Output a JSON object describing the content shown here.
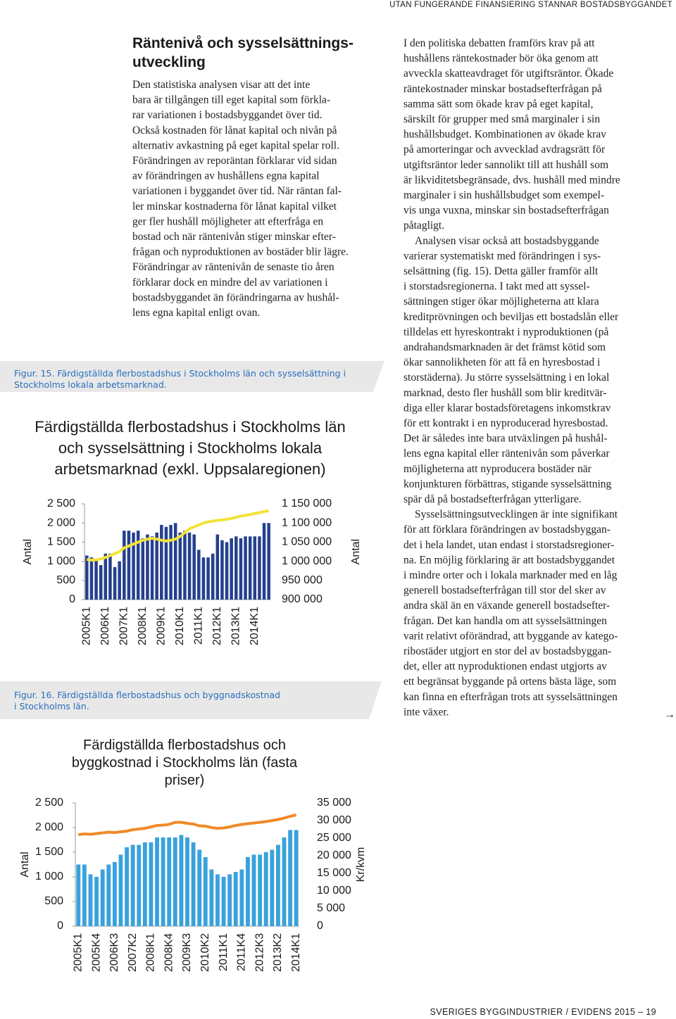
{
  "header": "UTAN FUNGERANDE FINANSIERING STANNAR BOSTADSBYGGANDET",
  "left_column": {
    "heading": [
      "Räntenivå och sysselsättnings-",
      "utveckling"
    ],
    "lines": [
      "Den statistiska analysen visar att det inte",
      "bara är tillgången till eget kapital som förkla-",
      "rar variationen i bostadsbyggandet över tid.",
      "Också kostnaden för lånat kapital och nivån på",
      "alternativ avkastning på eget kapital spelar roll.",
      "Förändringen av reporäntan förklarar vid sidan",
      "av förändringen av hushållens egna kapital",
      "variationen i byggandet över tid. När räntan fal-",
      "ler minskar kostnaderna för lånat kapital vilket",
      "ger fler hushåll möjligheter att efterfråga en",
      "bostad och när räntenivån stiger minskar efter-",
      "frågan och nyproduktionen av bostäder blir lägre.",
      "Förändringar av räntenivån de senaste tio åren",
      "förklarar dock en mindre del av variationen i",
      "bostadsbyggandet än förändringarna av hushål-",
      "lens egna kapital enligt ovan."
    ]
  },
  "right_column": {
    "paragraphs": [
      [
        "I den politiska debatten framförs krav på att",
        "hushållens räntekostnader bör öka genom att",
        "avveckla skatteavdraget för utgiftsräntor. Ökade",
        "räntekostnader minskar bostadsefterfrågan på",
        "samma sätt som ökade krav på eget kapital,",
        "särskilt för grupper med små marginaler i sin",
        "hushållsbudget. Kombinationen av ökade krav",
        "på amorteringar och avvecklad avdragsrätt för",
        "utgiftsräntor leder sannolikt till att hushåll som",
        "är likviditetsbegränsade, dvs. hushåll med mindre",
        "marginaler i sin hushållsbudget som exempel-",
        "vis unga vuxna, minskar sin bostadsefterfrågan",
        "påtagligt."
      ],
      [
        "Analysen visar också att bostadsbyggande",
        "varierar systematiskt med förändringen i sys-",
        "selsättning (fig. 15). Detta gäller framför allt",
        "i storstadsregionerna. I takt med att syssel-",
        "sättningen stiger ökar möjligheterna att klara",
        "kreditprövningen och beviljas ett bostadslån eller",
        "tilldelas ett hyreskontrakt i nyproduktionen (på",
        "andrahandsmarknaden är det främst kötid som",
        "ökar sannolikheten för att få en hyresbostad i",
        "storstäderna). Ju större sysselsättning i en lokal",
        "marknad, desto fler hushåll som blir kreditvär-",
        "diga eller klarar bostadsföretagens inkomstkrav",
        "för ett kontrakt i en nyproducerad hyresbostad.",
        "Det är således inte bara utväxlingen på hushål-",
        "lens egna kapital eller räntenivån som påverkar",
        "möjligheterna att nyproducera bostäder när",
        "konjunkturen förbättras, stigande sysselsättning",
        "spär då på bostadsefterfrågan ytterligare."
      ],
      [
        "Sysselsättningsutvecklingen är inte signifikant",
        "för att förklara förändringen av bostadsbyggan-",
        "det i hela landet, utan endast i storstadsregioner-",
        "na. En möjlig förklaring är att bostadsbyggandet",
        "i mindre orter och i lokala marknader med en låg",
        "generell bostadsefterfrågan till stor del sker av",
        "andra skäl än en växande generell bostadsefter-",
        "frågan. Det kan handla om att sysselsättningen",
        "varit relativt oförändrad, att byggande av katego-",
        "ribostäder utgjort en stor del av bostadsbyggan-",
        "det, eller att nyproduktionen endast utgjorts av",
        "ett begränsat byggande på ortens bästa läge, som",
        "kan finna en efterfrågan trots att sysselsättningen",
        "inte växer."
      ]
    ]
  },
  "figures": [
    {
      "caption": [
        "Figur. 15. Färdigställda flerbostadshus i Stockholms län och sysselsättning i",
        "Stockholms lokala arbetsmarknad."
      ]
    },
    {
      "caption": [
        "Figur. 16. Färdigställda flerbostadshus och byggnadskostnad",
        "i Stockholms län."
      ]
    }
  ],
  "chart_data": [
    {
      "type": "bar",
      "title": [
        "Färdigställda flerbostadshus i Stockholms län",
        "och sysselsättning i Stockholms lokala",
        "arbetsmarknad (exkl. Uppsalaregionen)"
      ],
      "ylabel": "Antal",
      "y2label": "Antal",
      "categories": [
        "2005K1",
        null,
        null,
        null,
        "2006K1",
        null,
        null,
        null,
        "2007K1",
        null,
        null,
        null,
        "2008K1",
        null,
        null,
        null,
        "2009K1",
        null,
        null,
        null,
        "2010K1",
        null,
        null,
        null,
        "2011K1",
        null,
        null,
        null,
        "2012K1",
        null,
        null,
        null,
        "2013K1",
        null,
        null,
        null,
        "2014K1",
        null,
        null,
        null
      ],
      "series": [
        {
          "type": "bar",
          "color": "#24408e",
          "values": [
            1150,
            1100,
            1050,
            900,
            1200,
            1200,
            850,
            1000,
            1800,
            1800,
            1750,
            1800,
            1600,
            1700,
            1650,
            1750,
            1950,
            1900,
            1950,
            2000,
            1750,
            1800,
            1750,
            1700,
            1300,
            1100,
            1100,
            1200,
            1700,
            1550,
            1500,
            1600,
            1650,
            1600,
            1650,
            1650,
            1650,
            1650,
            2000,
            2000
          ]
        },
        {
          "type": "line",
          "axis": "y2",
          "color": "#f3e23a",
          "values": [
            1005000,
            1003000,
            1004000,
            1006000,
            1010000,
            1015000,
            1020000,
            1025000,
            1035000,
            1040000,
            1045000,
            1050000,
            1055000,
            1058000,
            1060000,
            1058000,
            1055000,
            1053000,
            1055000,
            1058000,
            1065000,
            1075000,
            1085000,
            1090000,
            1095000,
            1100000,
            1103000,
            1105000,
            1107000,
            1108000,
            1110000,
            1112000,
            1115000,
            1118000,
            1120000,
            1122000,
            1125000,
            1127000,
            1130000,
            1132000
          ]
        }
      ],
      "ylim": [
        0,
        2500
      ],
      "yticks": [
        0,
        500,
        {
          "value": 1000,
          "label": "1 000"
        },
        {
          "value": 1500,
          "label": "1 500"
        },
        {
          "value": 2000,
          "label": "2 000"
        },
        {
          "value": 2500,
          "label": "2 500"
        }
      ],
      "y2lim": [
        900000,
        1150000
      ],
      "y2ticks": [
        {
          "value": 900000,
          "label": "900 000"
        },
        {
          "value": 950000,
          "label": "950 000"
        },
        {
          "value": 1000000,
          "label": "1 000 000"
        },
        {
          "value": 1050000,
          "label": "1 050 000"
        },
        {
          "value": 1100000,
          "label": "1 100 000"
        },
        {
          "value": 1150000,
          "label": "1 150 000"
        }
      ],
      "grid": false
    },
    {
      "type": "bar",
      "title": [
        "Färdigställda flerbostadshus och",
        "byggkostnad i Stockholms län (fasta",
        "priser)"
      ],
      "ylabel": "Antal",
      "y2label": "Kr/kvm",
      "categories": [
        "2005K1",
        null,
        null,
        "2005K4",
        null,
        null,
        "2006K3",
        null,
        null,
        "2007K2",
        null,
        null,
        "2008K1",
        null,
        null,
        "2008K4",
        null,
        null,
        "2009K3",
        null,
        null,
        "2010K2",
        null,
        null,
        "2011K1",
        null,
        null,
        "2011K4",
        null,
        null,
        "2012K3",
        null,
        null,
        "2013K2",
        null,
        null,
        "2014K1"
      ],
      "series": [
        {
          "type": "bar",
          "color": "#39a2dc",
          "values": [
            1250,
            1250,
            1050,
            1000,
            1150,
            1250,
            1300,
            1450,
            1600,
            1650,
            1650,
            1700,
            1700,
            1800,
            1800,
            1800,
            1800,
            1850,
            1800,
            1700,
            1550,
            1400,
            1150,
            1050,
            1000,
            1050,
            1100,
            1150,
            1400,
            1450,
            1450,
            1500,
            1550,
            1650,
            1800,
            1950,
            1950
          ]
        },
        {
          "type": "line",
          "axis": "y2",
          "color": "#ef8a2a",
          "values": [
            26000,
            26200,
            26100,
            26300,
            26500,
            26700,
            26600,
            26800,
            27000,
            27400,
            27600,
            27800,
            28200,
            28600,
            28700,
            28900,
            29500,
            29500,
            29200,
            29000,
            28500,
            28400,
            28000,
            27800,
            27900,
            28200,
            28600,
            28900,
            29100,
            29300,
            29500,
            29700,
            30000,
            30300,
            30700,
            31200,
            31600
          ]
        }
      ],
      "ylim": [
        0,
        2500
      ],
      "yticks": [
        0,
        500,
        {
          "value": 1000,
          "label": "1 000"
        },
        {
          "value": 1500,
          "label": "1 500"
        },
        {
          "value": 2000,
          "label": "2 000"
        },
        {
          "value": 2500,
          "label": "2 500"
        }
      ],
      "y2lim": [
        0,
        35000
      ],
      "y2ticks": [
        0,
        {
          "value": 5000,
          "label": "5 000"
        },
        {
          "value": 10000,
          "label": "10 000"
        },
        {
          "value": 15000,
          "label": "15 000"
        },
        {
          "value": 20000,
          "label": "20 000"
        },
        {
          "value": 25000,
          "label": "25 000"
        },
        {
          "value": 30000,
          "label": "30 000"
        },
        {
          "value": 35000,
          "label": "35 000"
        }
      ],
      "grid": false
    }
  ],
  "footer": "SVERIGES BYGGINDUSTRIER / EVIDENS 2015 – 19"
}
